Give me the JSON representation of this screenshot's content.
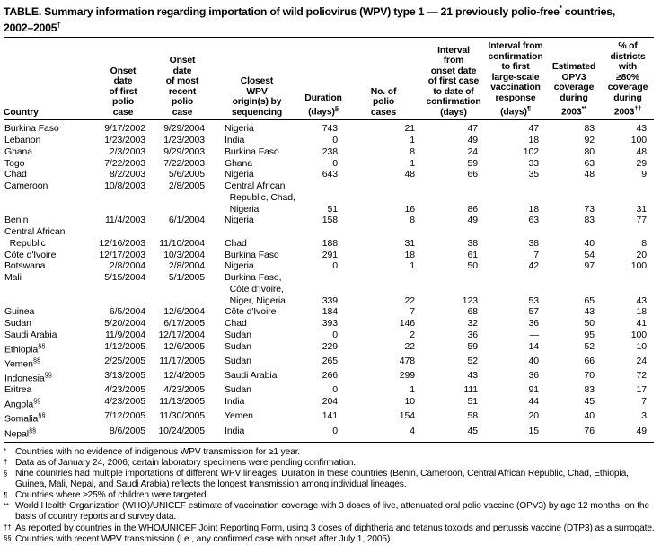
{
  "title": {
    "line1_text": "TABLE. Summary information regarding importation of wild poliovirus (WPV) type 1 — 21 previously polio-free",
    "line1_sup": "*",
    "line1_tail": " countries,",
    "line2_text": "2002–2005",
    "line2_sup": "†"
  },
  "table": {
    "headers": [
      {
        "lines": [
          "Country"
        ],
        "sup": ""
      },
      {
        "lines": [
          "Onset",
          "date",
          "of first",
          "polio",
          "case"
        ],
        "sup": ""
      },
      {
        "lines": [
          "Onset",
          "date",
          "of most",
          "recent",
          "polio",
          "case"
        ],
        "sup": ""
      },
      {
        "lines": [
          "Closest",
          "WPV",
          "origin(s) by",
          "sequencing"
        ],
        "sup": ""
      },
      {
        "lines": [
          "Duration",
          "(days)"
        ],
        "sup": "§"
      },
      {
        "lines": [
          "No. of",
          "polio",
          "cases"
        ],
        "sup": ""
      },
      {
        "lines": [
          "Interval",
          "from",
          "onset date",
          "of first case",
          "to date of",
          "confirmation",
          "(days)"
        ],
        "sup": ""
      },
      {
        "lines": [
          "Interval from",
          "confirmation",
          "to first",
          "large-scale",
          "vaccination",
          "response",
          "(days)"
        ],
        "sup": "¶"
      },
      {
        "lines": [
          "Estimated",
          "OPV3",
          "coverage",
          "during",
          "2003"
        ],
        "sup": "**"
      },
      {
        "lines": [
          "% of",
          "districts",
          "with",
          "≥80%",
          "coverage",
          "during",
          "2003"
        ],
        "sup": "††"
      }
    ],
    "rows": [
      {
        "country": [
          "Burkina Faso"
        ],
        "sup": "",
        "cells": [
          [
            "9/17/2002"
          ],
          [
            "9/29/2004"
          ],
          [
            "Nigeria"
          ],
          [
            "743"
          ],
          [
            "21"
          ],
          [
            "47"
          ],
          [
            "47"
          ],
          [
            "83"
          ],
          [
            "43"
          ]
        ]
      },
      {
        "country": [
          "Lebanon"
        ],
        "sup": "",
        "cells": [
          [
            "1/23/2003"
          ],
          [
            "1/23/2003"
          ],
          [
            "India"
          ],
          [
            "0"
          ],
          [
            "1"
          ],
          [
            "49"
          ],
          [
            "18"
          ],
          [
            "92"
          ],
          [
            "100"
          ]
        ]
      },
      {
        "country": [
          "Ghana"
        ],
        "sup": "",
        "cells": [
          [
            "2/3/2003"
          ],
          [
            "9/29/2003"
          ],
          [
            "Burkina Faso"
          ],
          [
            "238"
          ],
          [
            "8"
          ],
          [
            "24"
          ],
          [
            "102"
          ],
          [
            "80"
          ],
          [
            "48"
          ]
        ]
      },
      {
        "country": [
          "Togo"
        ],
        "sup": "",
        "cells": [
          [
            "7/22/2003"
          ],
          [
            "7/22/2003"
          ],
          [
            "Ghana"
          ],
          [
            "0"
          ],
          [
            "1"
          ],
          [
            "59"
          ],
          [
            "33"
          ],
          [
            "63"
          ],
          [
            "29"
          ]
        ]
      },
      {
        "country": [
          "Chad"
        ],
        "sup": "",
        "cells": [
          [
            "8/2/2003"
          ],
          [
            "5/6/2005"
          ],
          [
            "Nigeria"
          ],
          [
            "643"
          ],
          [
            "48"
          ],
          [
            "66"
          ],
          [
            "35"
          ],
          [
            "48"
          ],
          [
            "9"
          ]
        ]
      },
      {
        "country": [
          "Cameroon"
        ],
        "sup": "",
        "cells": [
          [
            "10/8/2003"
          ],
          [
            "2/8/2005"
          ],
          [
            "Central African",
            "  Republic, Chad,",
            "  Nigeria"
          ],
          [
            "",
            "",
            "51"
          ],
          [
            "",
            "",
            "16"
          ],
          [
            "",
            "",
            "86"
          ],
          [
            "",
            "",
            "18"
          ],
          [
            "",
            "",
            "73"
          ],
          [
            "",
            "",
            "31"
          ]
        ]
      },
      {
        "country": [
          "Benin"
        ],
        "sup": "",
        "cells": [
          [
            "11/4/2003"
          ],
          [
            "6/1/2004"
          ],
          [
            "Nigeria"
          ],
          [
            "158"
          ],
          [
            "8"
          ],
          [
            "49"
          ],
          [
            "63"
          ],
          [
            "83"
          ],
          [
            "77"
          ]
        ]
      },
      {
        "country": [
          "Central African",
          "  Republic"
        ],
        "sup": "",
        "cells": [
          [
            "",
            "12/16/2003"
          ],
          [
            "",
            "11/10/2004"
          ],
          [
            "",
            "Chad"
          ],
          [
            "",
            "188"
          ],
          [
            "",
            "31"
          ],
          [
            "",
            "38"
          ],
          [
            "",
            "38"
          ],
          [
            "",
            "40"
          ],
          [
            "",
            "8"
          ]
        ]
      },
      {
        "country": [
          "Côte d'Ivoire"
        ],
        "sup": "",
        "cells": [
          [
            "12/17/2003"
          ],
          [
            "10/3/2004"
          ],
          [
            "Burkina Faso"
          ],
          [
            "291"
          ],
          [
            "18"
          ],
          [
            "61"
          ],
          [
            "7"
          ],
          [
            "54"
          ],
          [
            "20"
          ]
        ]
      },
      {
        "country": [
          "Botswana"
        ],
        "sup": "",
        "cells": [
          [
            "2/8/2004"
          ],
          [
            "2/8/2004"
          ],
          [
            "Nigeria"
          ],
          [
            "0"
          ],
          [
            "1"
          ],
          [
            "50"
          ],
          [
            "42"
          ],
          [
            "97"
          ],
          [
            "100"
          ]
        ]
      },
      {
        "country": [
          "Mali"
        ],
        "sup": "",
        "cells": [
          [
            "5/15/2004"
          ],
          [
            "5/1/2005"
          ],
          [
            "Burkina Faso,",
            "  Côte d'Ivoire,",
            "  Niger, Nigeria"
          ],
          [
            "",
            "",
            "339"
          ],
          [
            "",
            "",
            "22"
          ],
          [
            "",
            "",
            "123"
          ],
          [
            "",
            "",
            "53"
          ],
          [
            "",
            "",
            "65"
          ],
          [
            "",
            "",
            "43"
          ]
        ]
      },
      {
        "country": [
          "Guinea"
        ],
        "sup": "",
        "cells": [
          [
            "6/5/2004"
          ],
          [
            "12/6/2004"
          ],
          [
            "Côte d'Ivoire"
          ],
          [
            "184"
          ],
          [
            "7"
          ],
          [
            "68"
          ],
          [
            "57"
          ],
          [
            "43"
          ],
          [
            "18"
          ]
        ]
      },
      {
        "country": [
          "Sudan"
        ],
        "sup": "",
        "cells": [
          [
            "5/20/2004"
          ],
          [
            "6/17/2005"
          ],
          [
            "Chad"
          ],
          [
            "393"
          ],
          [
            "146"
          ],
          [
            "32"
          ],
          [
            "36"
          ],
          [
            "50"
          ],
          [
            "41"
          ]
        ]
      },
      {
        "country": [
          "Saudi Arabia"
        ],
        "sup": "",
        "cells": [
          [
            "11/9/2004"
          ],
          [
            "12/17/2004"
          ],
          [
            "Sudan"
          ],
          [
            "0"
          ],
          [
            "2"
          ],
          [
            "36"
          ],
          [
            "—"
          ],
          [
            "95"
          ],
          [
            "100"
          ]
        ]
      },
      {
        "country": [
          "Ethiopia"
        ],
        "sup": "§§",
        "cells": [
          [
            "1/12/2005"
          ],
          [
            "12/6/2005"
          ],
          [
            "Sudan"
          ],
          [
            "229"
          ],
          [
            "22"
          ],
          [
            "59"
          ],
          [
            "14"
          ],
          [
            "52"
          ],
          [
            "10"
          ]
        ]
      },
      {
        "country": [
          "Yemen"
        ],
        "sup": "§§",
        "cells": [
          [
            "2/25/2005"
          ],
          [
            "11/17/2005"
          ],
          [
            "Sudan"
          ],
          [
            "265"
          ],
          [
            "478"
          ],
          [
            "52"
          ],
          [
            "40"
          ],
          [
            "66"
          ],
          [
            "24"
          ]
        ]
      },
      {
        "country": [
          "Indonesia"
        ],
        "sup": "§§",
        "cells": [
          [
            "3/13/2005"
          ],
          [
            "12/4/2005"
          ],
          [
            "Saudi Arabia"
          ],
          [
            "266"
          ],
          [
            "299"
          ],
          [
            "43"
          ],
          [
            "36"
          ],
          [
            "70"
          ],
          [
            "72"
          ]
        ]
      },
      {
        "country": [
          "Eritrea"
        ],
        "sup": "",
        "cells": [
          [
            "4/23/2005"
          ],
          [
            "4/23/2005"
          ],
          [
            "Sudan"
          ],
          [
            "0"
          ],
          [
            "1"
          ],
          [
            "111"
          ],
          [
            "91"
          ],
          [
            "83"
          ],
          [
            "17"
          ]
        ]
      },
      {
        "country": [
          "Angola"
        ],
        "sup": "§§",
        "cells": [
          [
            "4/23/2005"
          ],
          [
            "11/13/2005"
          ],
          [
            "India"
          ],
          [
            "204"
          ],
          [
            "10"
          ],
          [
            "51"
          ],
          [
            "44"
          ],
          [
            "45"
          ],
          [
            "7"
          ]
        ]
      },
      {
        "country": [
          "Somalia"
        ],
        "sup": "§§",
        "cells": [
          [
            "7/12/2005"
          ],
          [
            "11/30/2005"
          ],
          [
            "Yemen"
          ],
          [
            "141"
          ],
          [
            "154"
          ],
          [
            "58"
          ],
          [
            "20"
          ],
          [
            "40"
          ],
          [
            "3"
          ]
        ]
      },
      {
        "country": [
          "Nepal"
        ],
        "sup": "§§",
        "cells": [
          [
            "8/6/2005"
          ],
          [
            "10/24/2005"
          ],
          [
            "India"
          ],
          [
            "0"
          ],
          [
            "4"
          ],
          [
            "45"
          ],
          [
            "15"
          ],
          [
            "76"
          ],
          [
            "49"
          ]
        ]
      }
    ]
  },
  "footnotes": [
    {
      "marker": "*",
      "text": "Countries with no evidence of indigenous WPV transmission for ≥1 year."
    },
    {
      "marker": "†",
      "text": "Data as of January 24, 2006; certain laboratory specimens were pending confirmation."
    },
    {
      "marker": "§",
      "text": "Nine countries had multiple importations of different WPV lineages. Duration in these countries (Benin, Cameroon, Central African Republic, Chad, Ethiopia, Guinea, Mali, Nepal, and Saudi Arabia) reflects the longest transmission among individual lineages."
    },
    {
      "marker": "¶",
      "text": "Countries where ≥25% of children were targeted."
    },
    {
      "marker": "**",
      "text": "World Health Organization (WHO)/UNICEF estimate of vaccination coverage with 3 doses of live, attenuated oral polio vaccine (OPV3) by age 12 months, on the basis of country reports and survey data."
    },
    {
      "marker": "††",
      "text": "As reported by countries in the WHO/UNICEF Joint Reporting Form, using 3 doses of diphtheria and tetanus toxoids and pertussis vaccine (DTP3) as a surrogate."
    },
    {
      "marker": "§§",
      "text": "Countries with recent WPV transmission (i.e., any confirmed case with onset after July 1, 2005)."
    }
  ]
}
